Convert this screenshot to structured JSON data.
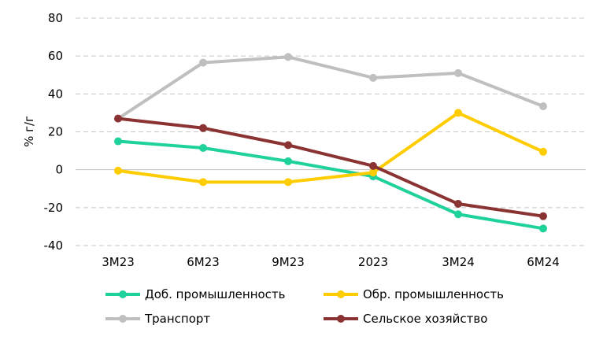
{
  "chart_data": {
    "type": "line",
    "title": "",
    "xlabel": "",
    "ylabel": "% г/г",
    "categories": [
      "3М23",
      "6М23",
      "9М23",
      "2023",
      "3М24",
      "6М24"
    ],
    "ylim": [
      -40,
      80
    ],
    "yticks": [
      80,
      60,
      40,
      20,
      0,
      -20,
      -40
    ],
    "grid": true,
    "legend_position": "bottom",
    "series": [
      {
        "name": "Доб. промышленность",
        "color": "#1fd19a",
        "values": [
          15,
          11.5,
          4.5,
          -3.5,
          -23.5,
          -31
        ]
      },
      {
        "name": "Обр. промышленность",
        "color": "#ffcc00",
        "values": [
          -0.5,
          -6.5,
          -6.5,
          -1.5,
          30,
          9.5
        ]
      },
      {
        "name": "Транспорт",
        "color": "#bfbfbf",
        "values": [
          27,
          56.5,
          59.5,
          48.5,
          51,
          33.5
        ]
      },
      {
        "name": "Сельское хозяйство",
        "color": "#8b3232",
        "values": [
          27,
          22,
          13,
          2,
          -18,
          -24.5
        ]
      }
    ]
  }
}
